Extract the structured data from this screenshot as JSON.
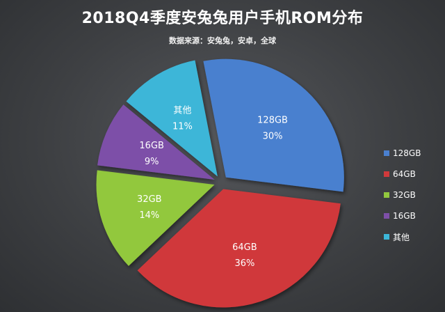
{
  "title": "2018Q4季度安兔兔用户手机ROM分布",
  "subtitle": "数据来源：安兔兔，安卓，全球",
  "chart_data": {
    "type": "pie",
    "exploded": true,
    "start_angle_deg": -101,
    "slices": [
      {
        "label": "128GB",
        "value": 30,
        "value_label": "30%",
        "color": "#4a80cf"
      },
      {
        "label": "64GB",
        "value": 36,
        "value_label": "36%",
        "color": "#d0393b"
      },
      {
        "label": "32GB",
        "value": 14,
        "value_label": "14%",
        "color": "#92c83e"
      },
      {
        "label": "16GB",
        "value": 9,
        "value_label": "9%",
        "color": "#7d4fa8"
      },
      {
        "label": "其他",
        "value": 11,
        "value_label": "11%",
        "color": "#3cb6d8"
      }
    ],
    "legend_position": "right",
    "legend": [
      "128GB",
      "64GB",
      "32GB",
      "16GB",
      "其他"
    ]
  }
}
